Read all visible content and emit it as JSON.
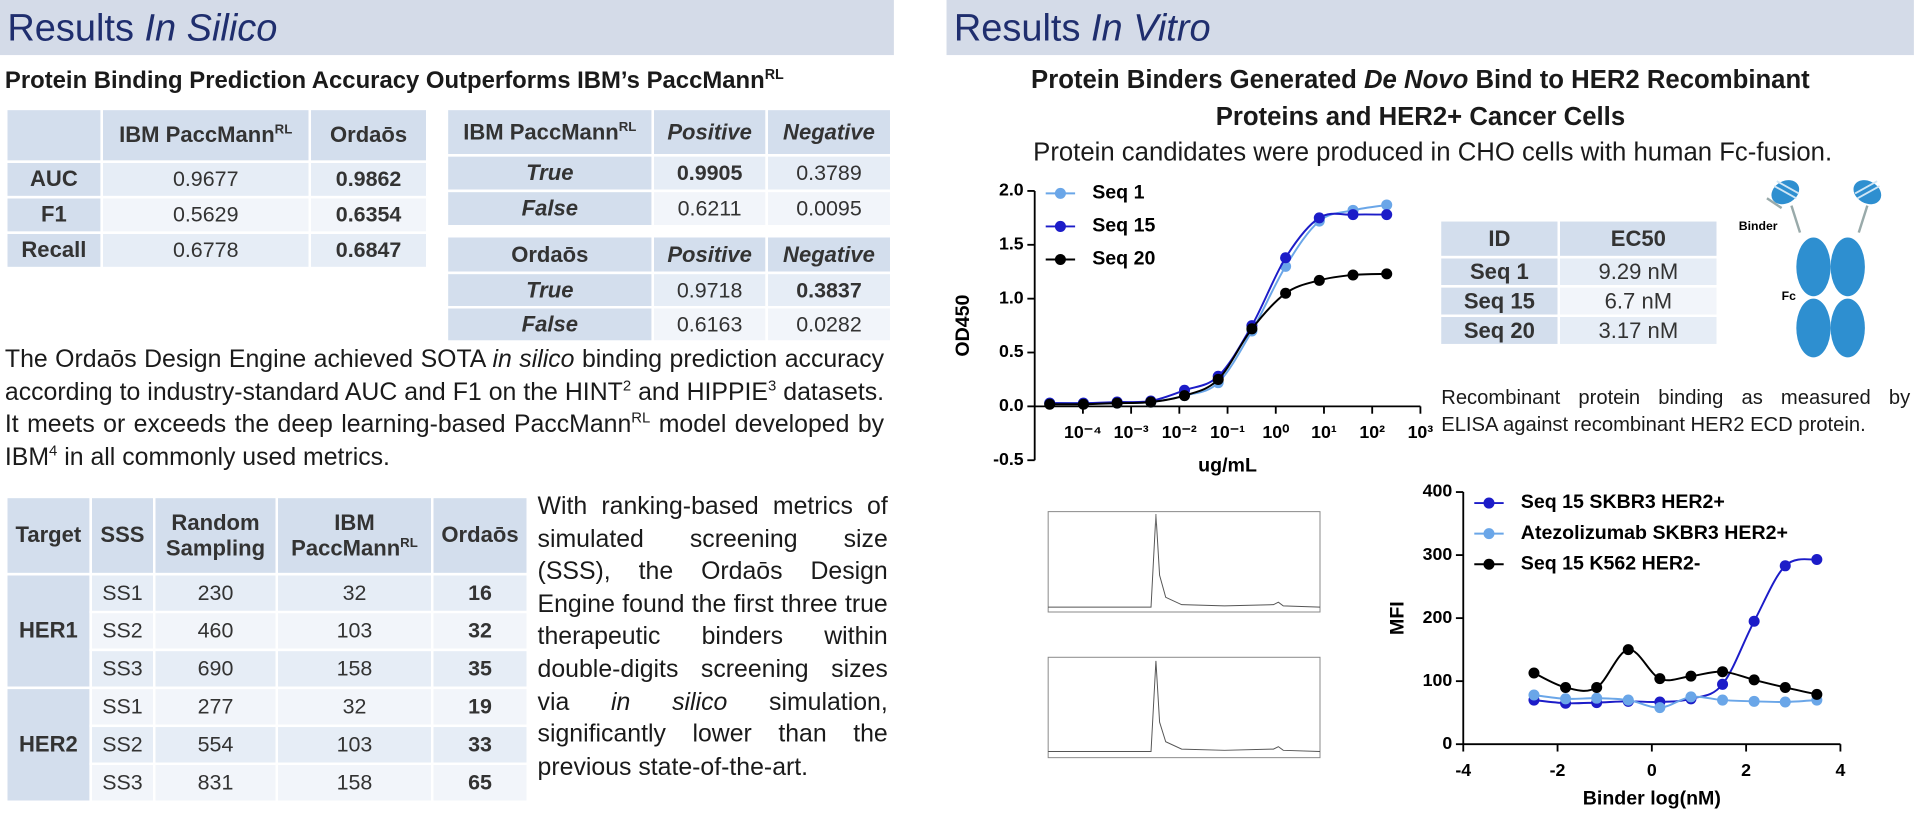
{
  "left": {
    "title": [
      "Results ",
      {
        "italic": "In Silico"
      }
    ],
    "subtitle": [
      "Protein Binding Prediction Accuracy Outperforms IBM’s PaccMann",
      {
        "sup": "RL"
      }
    ],
    "metrics_table": {
      "header": [
        [
          "IBM PaccMann",
          {
            "sup": "RL"
          }
        ],
        "Ordaōs"
      ],
      "rows": [
        [
          "AUC",
          0.9677,
          0.9862
        ],
        [
          "F1",
          0.5629,
          0.6354
        ],
        [
          "Recall",
          0.6778,
          0.6847
        ]
      ],
      "bold_cells": [
        [
          0,
          2
        ],
        [
          1,
          2
        ],
        [
          2,
          2
        ]
      ]
    },
    "ibm_confusion": {
      "header": [
        [
          "IBM PaccMann",
          {
            "sup": "RL"
          }
        ],
        "Positive",
        "Negative"
      ],
      "rows": [
        [
          "True",
          0.9905,
          0.3789
        ],
        [
          "False",
          0.6211,
          0.0095
        ]
      ],
      "bold_cells": [
        [
          0,
          1
        ]
      ]
    },
    "ordaos_confusion": {
      "header": [
        "Ordaōs",
        "Positive",
        "Negative"
      ],
      "rows": [
        [
          "True",
          0.9718,
          0.3837
        ],
        [
          "False",
          0.6163,
          0.0282
        ]
      ],
      "bold_cells": [
        [
          0,
          2
        ]
      ]
    },
    "summary": [
      "The Ordaōs Design Engine achieved SOTA ",
      {
        "italic": "in silico"
      },
      " binding prediction accuracy according to industry-standard AUC and F1 on the HINT",
      {
        "sup": "2"
      },
      " and HIPPIE",
      {
        "sup": "3"
      },
      " datasets. It meets or exceeds the deep learning-based PaccMann",
      {
        "sup": "RL"
      },
      " model developed by IBM",
      {
        "sup": "4"
      },
      " in all commonly used metrics."
    ],
    "sss_table": {
      "header": [
        "Target",
        "SSS",
        "Random Sampling",
        [
          "IBM PaccMann",
          {
            "sup": "RL"
          }
        ],
        "Ordaōs"
      ],
      "groups": [
        {
          "target": "HER1",
          "rows": [
            [
              "SS1",
              230,
              32,
              16
            ],
            [
              "SS2",
              460,
              103,
              32
            ],
            [
              "SS3",
              690,
              158,
              35
            ]
          ]
        },
        {
          "target": "HER2",
          "rows": [
            [
              "SS1",
              277,
              32,
              19
            ],
            [
              "SS2",
              554,
              103,
              33
            ],
            [
              "SS3",
              831,
              158,
              65
            ]
          ]
        }
      ],
      "bold_column": 3
    },
    "sss_text": [
      "With ranking-based metrics of simulated screening size (SSS), the Ordaōs Design Engine found the first three true therapeutic binders within double-digits screening sizes via ",
      {
        "italic": "in silico"
      },
      " simulation, significantly lower than the previous state-of-the-art."
    ]
  },
  "right": {
    "title": [
      "Results ",
      {
        "italic": "In Vitro"
      }
    ],
    "subtitle": [
      "Protein Binders Generated ",
      {
        "italic": "De Novo"
      },
      " Bind to HER2 Recombinant Proteins and HER2+ Cancer Cells"
    ],
    "note": "Protein candidates were produced in CHO cells with human Fc-fusion.",
    "ec50_table": {
      "header": [
        "ID",
        "EC50"
      ],
      "rows": [
        [
          "Seq 1",
          "9.29 nM"
        ],
        [
          "Seq 15",
          "6.7 nM"
        ],
        [
          "Seq 20",
          "3.17 nM"
        ]
      ]
    },
    "diagram": {
      "binder_label": "Binder",
      "fc_label": "Fc"
    },
    "elisa_caption": "Recombinant protein binding as measured by ELISA against recombinant HER2 ECD protein."
  },
  "chart_data": [
    {
      "type": "line",
      "x_scale": "log",
      "x": [
        2.048e-05,
        0.0001024,
        0.000512,
        0.00256,
        0.0128,
        0.064,
        0.32,
        1.6,
        8,
        40,
        200
      ],
      "series": [
        {
          "name": "Seq 1",
          "color": "#6aa6e8",
          "values": [
            0.03,
            0.03,
            0.03,
            0.04,
            0.1,
            0.22,
            0.7,
            1.3,
            1.72,
            1.82,
            1.87
          ]
        },
        {
          "name": "Seq 15",
          "color": "#1c1cc8",
          "values": [
            0.03,
            0.03,
            0.04,
            0.05,
            0.15,
            0.28,
            0.75,
            1.38,
            1.75,
            1.78,
            1.78
          ]
        },
        {
          "name": "Seq 20",
          "color": "#000000",
          "values": [
            0.02,
            0.02,
            0.03,
            0.04,
            0.1,
            0.25,
            0.72,
            1.05,
            1.17,
            1.22,
            1.23
          ]
        }
      ],
      "xlim": [
        1e-05,
        1000
      ],
      "xticks": [
        {
          "value": 0.0001,
          "label": "10⁻⁴"
        },
        {
          "value": 0.001,
          "label": "10⁻³"
        },
        {
          "value": 0.01,
          "label": "10⁻²"
        },
        {
          "value": 0.1,
          "label": "10⁻¹"
        },
        {
          "value": 1,
          "label": "10⁰"
        },
        {
          "value": 10,
          "label": "10¹"
        },
        {
          "value": 100,
          "label": "10²"
        },
        {
          "value": 1000,
          "label": "10³"
        }
      ],
      "ylim": [
        -0.5,
        2
      ],
      "yticks": [
        -0.5,
        {
          "value": 0,
          "label": "0.0"
        },
        0.5,
        {
          "value": 1,
          "label": "1.0"
        },
        1.5,
        {
          "value": 2,
          "label": "2.0"
        }
      ],
      "x_label": "ug/mL",
      "y_label": "OD450",
      "legend": "upper left"
    },
    {
      "type": "line",
      "x": [
        -2.5,
        -1.83,
        -1.17,
        -0.5,
        0.17,
        0.83,
        1.5,
        2.17,
        2.83,
        3.5
      ],
      "series": [
        {
          "name": "Seq 15 SKBR3 HER2+",
          "color": "#1c1cc8",
          "values": [
            70,
            65,
            66,
            68,
            67,
            72,
            95,
            195,
            283,
            293
          ]
        },
        {
          "name": "Atezolizumab SKBR3 HER2+",
          "color": "#6aa6e8",
          "values": [
            78,
            72,
            73,
            70,
            58,
            75,
            70,
            68,
            67,
            70
          ]
        },
        {
          "name": "Seq 15 K562 HER2-",
          "color": "#000000",
          "values": [
            113,
            90,
            90,
            150,
            104,
            108,
            115,
            102,
            90,
            79
          ]
        }
      ],
      "xlim": [
        -4,
        4
      ],
      "xticks": [
        -4,
        -2,
        0,
        2,
        4
      ],
      "ylim": [
        0,
        400
      ],
      "yticks": [
        0,
        100,
        200,
        300,
        400
      ],
      "x_label": "Binder log(nM)",
      "y_label": "MFI",
      "legend": "upper left"
    }
  ]
}
